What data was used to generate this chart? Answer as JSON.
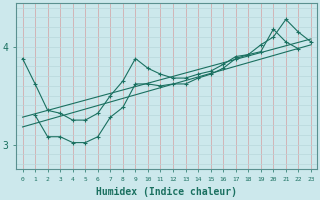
{
  "xlabel": "Humidex (Indice chaleur)",
  "xlim": [
    -0.5,
    23.5
  ],
  "ylim": [
    2.75,
    4.45
  ],
  "yticks": [
    3,
    4
  ],
  "xticks": [
    0,
    1,
    2,
    3,
    4,
    5,
    6,
    7,
    8,
    9,
    10,
    11,
    12,
    13,
    14,
    15,
    16,
    17,
    18,
    19,
    20,
    21,
    22,
    23
  ],
  "bg_color": "#cce8ec",
  "line_color": "#1a7060",
  "vgrid_color": "#d4a0a0",
  "hgrid_color": "#b8d8dc",
  "lines": [
    {
      "x": [
        0,
        1,
        2,
        3,
        4,
        5,
        6,
        7,
        8,
        9,
        10,
        11,
        12,
        13,
        14,
        15,
        16,
        17,
        18,
        19,
        20,
        21,
        22,
        23
      ],
      "y": [
        3.88,
        3.62,
        3.35,
        3.32,
        3.25,
        3.25,
        3.32,
        3.5,
        3.65,
        3.88,
        3.78,
        3.72,
        3.68,
        3.68,
        3.72,
        3.75,
        3.82,
        3.9,
        3.92,
        4.02,
        4.1,
        4.28,
        4.15,
        4.05
      ]
    },
    {
      "x": [
        0,
        23
      ],
      "y": [
        3.28,
        4.08
      ]
    },
    {
      "x": [
        0,
        23
      ],
      "y": [
        3.18,
        4.02
      ]
    },
    {
      "x": [
        1,
        2,
        3,
        4,
        5,
        6,
        7,
        8,
        9,
        10,
        11,
        12,
        13,
        14,
        15,
        16,
        17,
        18,
        19,
        20,
        21,
        22,
        23
      ],
      "y": [
        3.3,
        3.08,
        3.08,
        3.02,
        3.02,
        3.08,
        3.28,
        3.38,
        3.62,
        3.62,
        3.6,
        3.62,
        3.62,
        3.68,
        3.72,
        3.78,
        3.88,
        3.92,
        3.95,
        4.18,
        4.05,
        3.98,
        null
      ]
    }
  ],
  "marker": "+"
}
